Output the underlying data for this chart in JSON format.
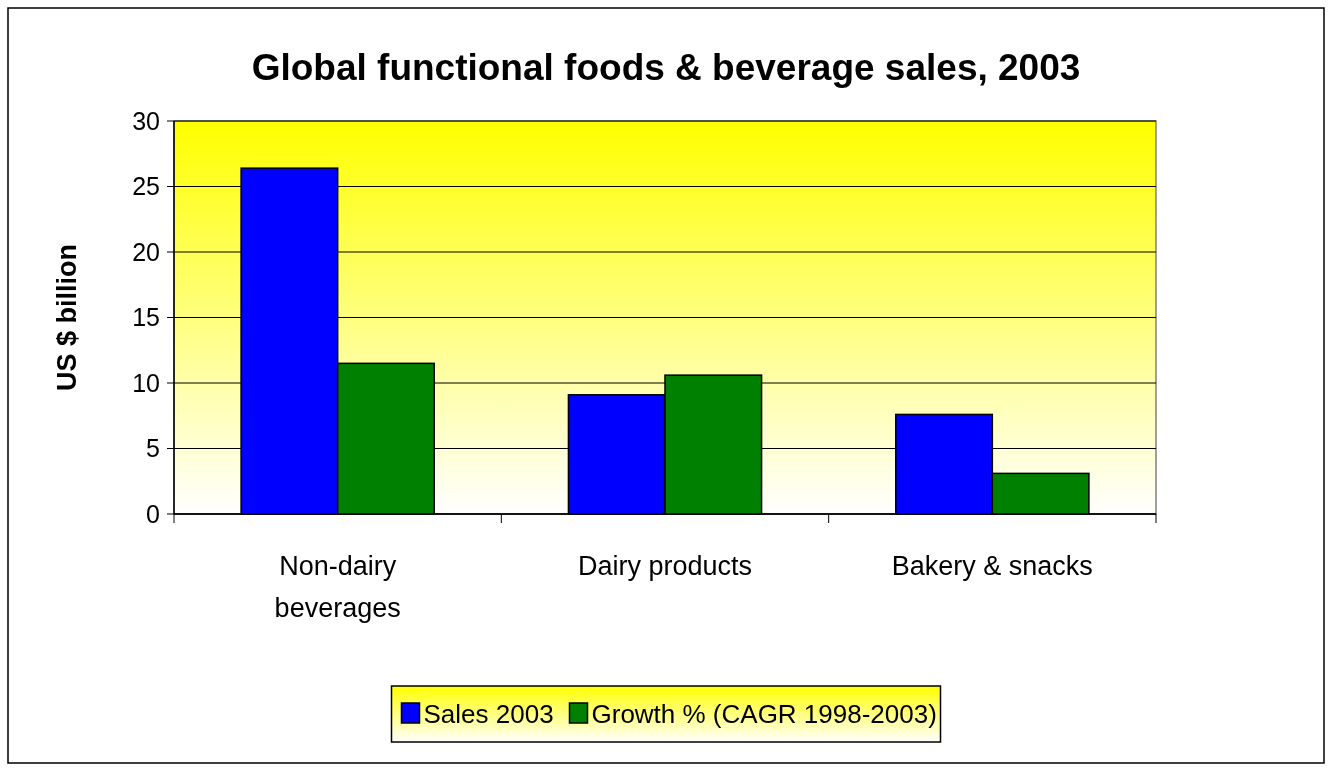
{
  "chart_data": {
    "type": "bar",
    "title": "Global functional foods & beverage sales, 2003",
    "ylabel": "US $ billion",
    "categories": [
      "Non-dairy beverages",
      "Dairy products",
      "Bakery & snacks"
    ],
    "series": [
      {
        "name": "Sales 2003",
        "color": "#0000ff",
        "values": [
          26.4,
          9.1,
          7.6
        ]
      },
      {
        "name": "Growth % (CAGR 1998-2003)",
        "color": "#008000",
        "values": [
          11.5,
          10.6,
          3.1
        ]
      }
    ],
    "ylim": [
      0,
      30
    ],
    "yticks": [
      0,
      5,
      10,
      15,
      20,
      25,
      30
    ],
    "grid": "y",
    "legend": "bottom"
  }
}
